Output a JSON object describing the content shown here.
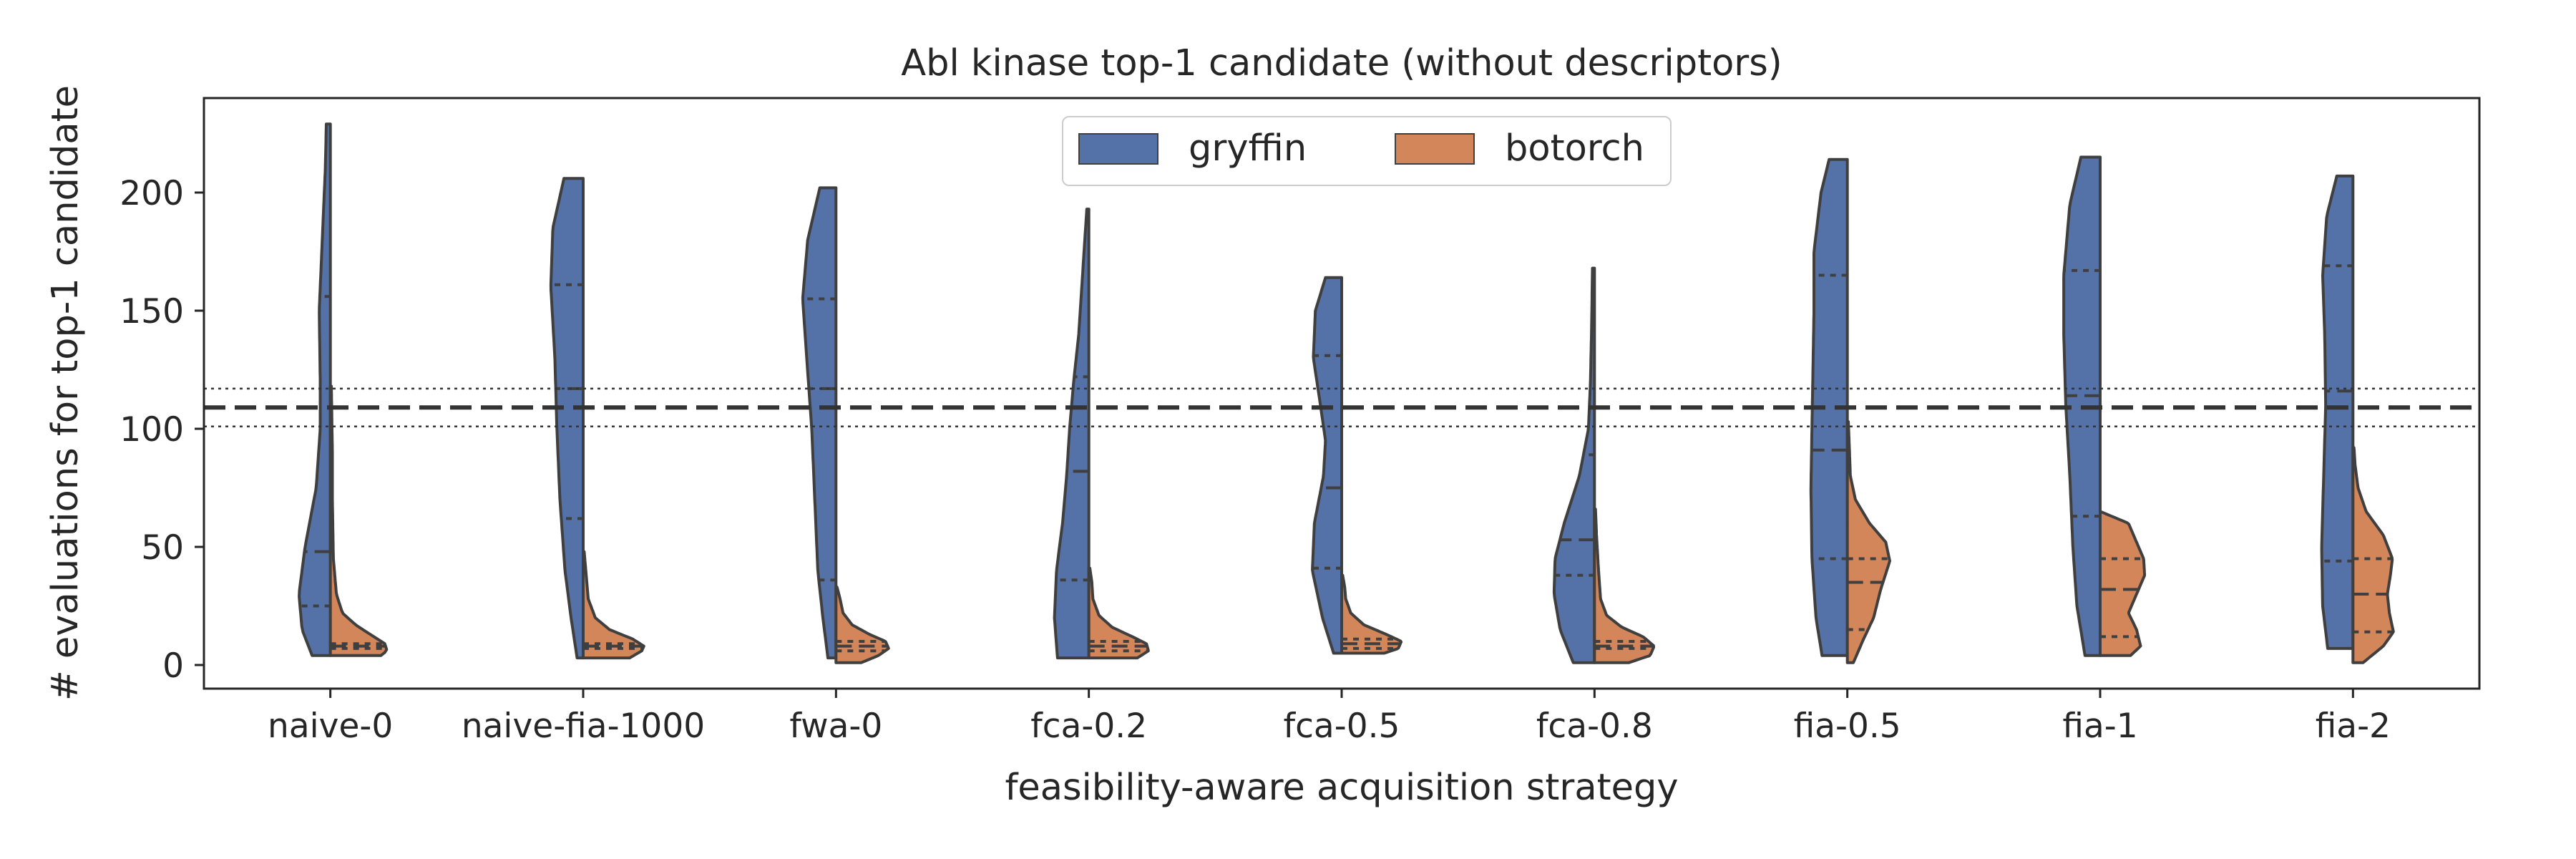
{
  "chart_data": {
    "type": "split-violin",
    "title": "Abl kinase top-1 candidate (without descriptors)",
    "xlabel": "feasibility-aware acquisition strategy",
    "ylabel": "# evaluations for top-1 candidate",
    "ylim": [
      -10,
      240
    ],
    "yticks": [
      0,
      50,
      100,
      150,
      200
    ],
    "grid": false,
    "legend": {
      "placement": "top-center",
      "columns": 2
    },
    "reference_lines": {
      "dashed": 109,
      "dotted": [
        101,
        117
      ]
    },
    "colors": {
      "gryffin": "#5572a8",
      "botorch": "#d38659",
      "edge": "#3f3f3f"
    },
    "categories": [
      "naive-0",
      "naive-fia-1000",
      "fwa-0",
      "fca-0.2",
      "fca-0.5",
      "fca-0.8",
      "fia-0.5",
      "fia-1",
      "fia-2"
    ],
    "series": [
      {
        "name": "gryffin",
        "violins": [
          {
            "min": 4,
            "max": 229,
            "quartiles": [
              25,
              48,
              156
            ],
            "profile": [
              [
                4,
                0.18
              ],
              [
                15,
                0.28
              ],
              [
                30,
                0.31
              ],
              [
                50,
                0.25
              ],
              [
                75,
                0.14
              ],
              [
                100,
                0.1
              ],
              [
                120,
                0.1
              ],
              [
                150,
                0.11
              ],
              [
                180,
                0.08
              ],
              [
                210,
                0.05
              ],
              [
                229,
                0.04
              ]
            ]
          },
          {
            "min": 3,
            "max": 206,
            "quartiles": [
              62,
              117,
              161
            ],
            "profile": [
              [
                3,
                0.06
              ],
              [
                20,
                0.12
              ],
              [
                40,
                0.18
              ],
              [
                70,
                0.23
              ],
              [
                100,
                0.26
              ],
              [
                130,
                0.28
              ],
              [
                160,
                0.32
              ],
              [
                185,
                0.3
              ],
              [
                206,
                0.19
              ]
            ]
          },
          {
            "min": 3,
            "max": 202,
            "quartiles": [
              36,
              117,
              155
            ],
            "profile": [
              [
                3,
                0.08
              ],
              [
                20,
                0.13
              ],
              [
                40,
                0.18
              ],
              [
                70,
                0.21
              ],
              [
                100,
                0.24
              ],
              [
                130,
                0.29
              ],
              [
                155,
                0.33
              ],
              [
                180,
                0.28
              ],
              [
                202,
                0.16
              ]
            ]
          },
          {
            "min": 3,
            "max": 193,
            "quartiles": [
              36,
              82,
              122
            ],
            "profile": [
              [
                3,
                0.31
              ],
              [
                20,
                0.34
              ],
              [
                40,
                0.32
              ],
              [
                60,
                0.26
              ],
              [
                80,
                0.22
              ],
              [
                100,
                0.19
              ],
              [
                120,
                0.15
              ],
              [
                140,
                0.1
              ],
              [
                160,
                0.07
              ],
              [
                180,
                0.04
              ],
              [
                193,
                0.02
              ]
            ]
          },
          {
            "min": 5,
            "max": 164,
            "quartiles": [
              41,
              75,
              131
            ],
            "profile": [
              [
                5,
                0.08
              ],
              [
                20,
                0.19
              ],
              [
                40,
                0.29
              ],
              [
                60,
                0.27
              ],
              [
                80,
                0.18
              ],
              [
                95,
                0.16
              ],
              [
                110,
                0.21
              ],
              [
                130,
                0.28
              ],
              [
                150,
                0.26
              ],
              [
                164,
                0.16
              ]
            ]
          },
          {
            "min": 1,
            "max": 168,
            "quartiles": [
              38,
              53,
              89
            ],
            "profile": [
              [
                1,
                0.21
              ],
              [
                15,
                0.34
              ],
              [
                30,
                0.4
              ],
              [
                45,
                0.39
              ],
              [
                60,
                0.3
              ],
              [
                80,
                0.15
              ],
              [
                100,
                0.06
              ],
              [
                120,
                0.04
              ],
              [
                140,
                0.03
              ],
              [
                168,
                0.02
              ]
            ]
          },
          {
            "min": 4,
            "max": 214,
            "quartiles": [
              45,
              91,
              165
            ],
            "profile": [
              [
                4,
                0.25
              ],
              [
                20,
                0.31
              ],
              [
                45,
                0.35
              ],
              [
                75,
                0.36
              ],
              [
                100,
                0.35
              ],
              [
                125,
                0.34
              ],
              [
                150,
                0.33
              ],
              [
                175,
                0.33
              ],
              [
                200,
                0.26
              ],
              [
                214,
                0.18
              ]
            ]
          },
          {
            "min": 4,
            "max": 215,
            "quartiles": [
              63,
              114,
              167
            ],
            "profile": [
              [
                4,
                0.15
              ],
              [
                25,
                0.23
              ],
              [
                50,
                0.27
              ],
              [
                80,
                0.3
              ],
              [
                110,
                0.34
              ],
              [
                140,
                0.36
              ],
              [
                165,
                0.36
              ],
              [
                195,
                0.3
              ],
              [
                215,
                0.19
              ]
            ]
          },
          {
            "min": 7,
            "max": 207,
            "quartiles": [
              44,
              116,
              169
            ],
            "profile": [
              [
                7,
                0.25
              ],
              [
                25,
                0.3
              ],
              [
                50,
                0.31
              ],
              [
                80,
                0.29
              ],
              [
                110,
                0.27
              ],
              [
                140,
                0.28
              ],
              [
                165,
                0.3
              ],
              [
                190,
                0.26
              ],
              [
                207,
                0.16
              ]
            ]
          }
        ]
      },
      {
        "name": "botorch",
        "violins": [
          {
            "min": 4,
            "max": 118,
            "quartiles": [
              7,
              8,
              9
            ],
            "profile": [
              [
                4,
                0.5
              ],
              [
                6,
                0.56
              ],
              [
                9,
                0.54
              ],
              [
                12,
                0.43
              ],
              [
                17,
                0.25
              ],
              [
                22,
                0.12
              ],
              [
                30,
                0.06
              ],
              [
                45,
                0.03
              ],
              [
                70,
                0.02
              ],
              [
                90,
                0.02
              ],
              [
                118,
                0.01
              ]
            ]
          },
          {
            "min": 3,
            "max": 48,
            "quartiles": [
              7,
              8,
              9
            ],
            "profile": [
              [
                3,
                0.46
              ],
              [
                6,
                0.58
              ],
              [
                8,
                0.6
              ],
              [
                11,
                0.49
              ],
              [
                15,
                0.26
              ],
              [
                20,
                0.12
              ],
              [
                28,
                0.05
              ],
              [
                38,
                0.03
              ],
              [
                48,
                0.01
              ]
            ]
          },
          {
            "min": 1,
            "max": 33,
            "quartiles": [
              6,
              8,
              10
            ],
            "profile": [
              [
                1,
                0.25
              ],
              [
                4,
                0.42
              ],
              [
                7,
                0.52
              ],
              [
                10,
                0.49
              ],
              [
                13,
                0.33
              ],
              [
                17,
                0.16
              ],
              [
                22,
                0.07
              ],
              [
                28,
                0.04
              ],
              [
                33,
                0.01
              ]
            ]
          },
          {
            "min": 3,
            "max": 41,
            "quartiles": [
              6,
              8,
              10
            ],
            "profile": [
              [
                3,
                0.48
              ],
              [
                6,
                0.59
              ],
              [
                9,
                0.57
              ],
              [
                12,
                0.43
              ],
              [
                16,
                0.23
              ],
              [
                21,
                0.1
              ],
              [
                28,
                0.04
              ],
              [
                35,
                0.03
              ],
              [
                41,
                0.01
              ]
            ]
          },
          {
            "min": 5,
            "max": 38,
            "quartiles": [
              7,
              9,
              11
            ],
            "profile": [
              [
                5,
                0.42
              ],
              [
                7,
                0.56
              ],
              [
                10,
                0.59
              ],
              [
                13,
                0.44
              ],
              [
                17,
                0.22
              ],
              [
                22,
                0.09
              ],
              [
                28,
                0.04
              ],
              [
                33,
                0.03
              ],
              [
                38,
                0.01
              ]
            ]
          },
          {
            "min": 1,
            "max": 66,
            "quartiles": [
              7,
              8,
              10
            ],
            "profile": [
              [
                1,
                0.34
              ],
              [
                4,
                0.55
              ],
              [
                8,
                0.59
              ],
              [
                12,
                0.48
              ],
              [
                16,
                0.27
              ],
              [
                21,
                0.12
              ],
              [
                28,
                0.06
              ],
              [
                40,
                0.04
              ],
              [
                55,
                0.02
              ],
              [
                66,
                0.01
              ]
            ]
          },
          {
            "min": 1,
            "max": 103,
            "quartiles": [
              15,
              35,
              45
            ],
            "profile": [
              [
                1,
                0.06
              ],
              [
                10,
                0.15
              ],
              [
                20,
                0.26
              ],
              [
                32,
                0.33
              ],
              [
                44,
                0.42
              ],
              [
                52,
                0.38
              ],
              [
                60,
                0.22
              ],
              [
                70,
                0.08
              ],
              [
                80,
                0.03
              ],
              [
                92,
                0.02
              ],
              [
                103,
                0.01
              ]
            ]
          },
          {
            "min": 4,
            "max": 65,
            "quartiles": [
              12,
              32,
              45
            ],
            "profile": [
              [
                4,
                0.3
              ],
              [
                8,
                0.4
              ],
              [
                15,
                0.36
              ],
              [
                22,
                0.28
              ],
              [
                30,
                0.36
              ],
              [
                38,
                0.44
              ],
              [
                45,
                0.43
              ],
              [
                52,
                0.36
              ],
              [
                60,
                0.28
              ],
              [
                65,
                0.0
              ]
            ]
          },
          {
            "min": 1,
            "max": 92,
            "quartiles": [
              14,
              30,
              45
            ],
            "profile": [
              [
                1,
                0.1
              ],
              [
                8,
                0.3
              ],
              [
                14,
                0.4
              ],
              [
                22,
                0.36
              ],
              [
                30,
                0.34
              ],
              [
                38,
                0.37
              ],
              [
                45,
                0.39
              ],
              [
                55,
                0.3
              ],
              [
                65,
                0.13
              ],
              [
                75,
                0.05
              ],
              [
                85,
                0.02
              ],
              [
                92,
                0.01
              ]
            ]
          }
        ]
      }
    ]
  }
}
